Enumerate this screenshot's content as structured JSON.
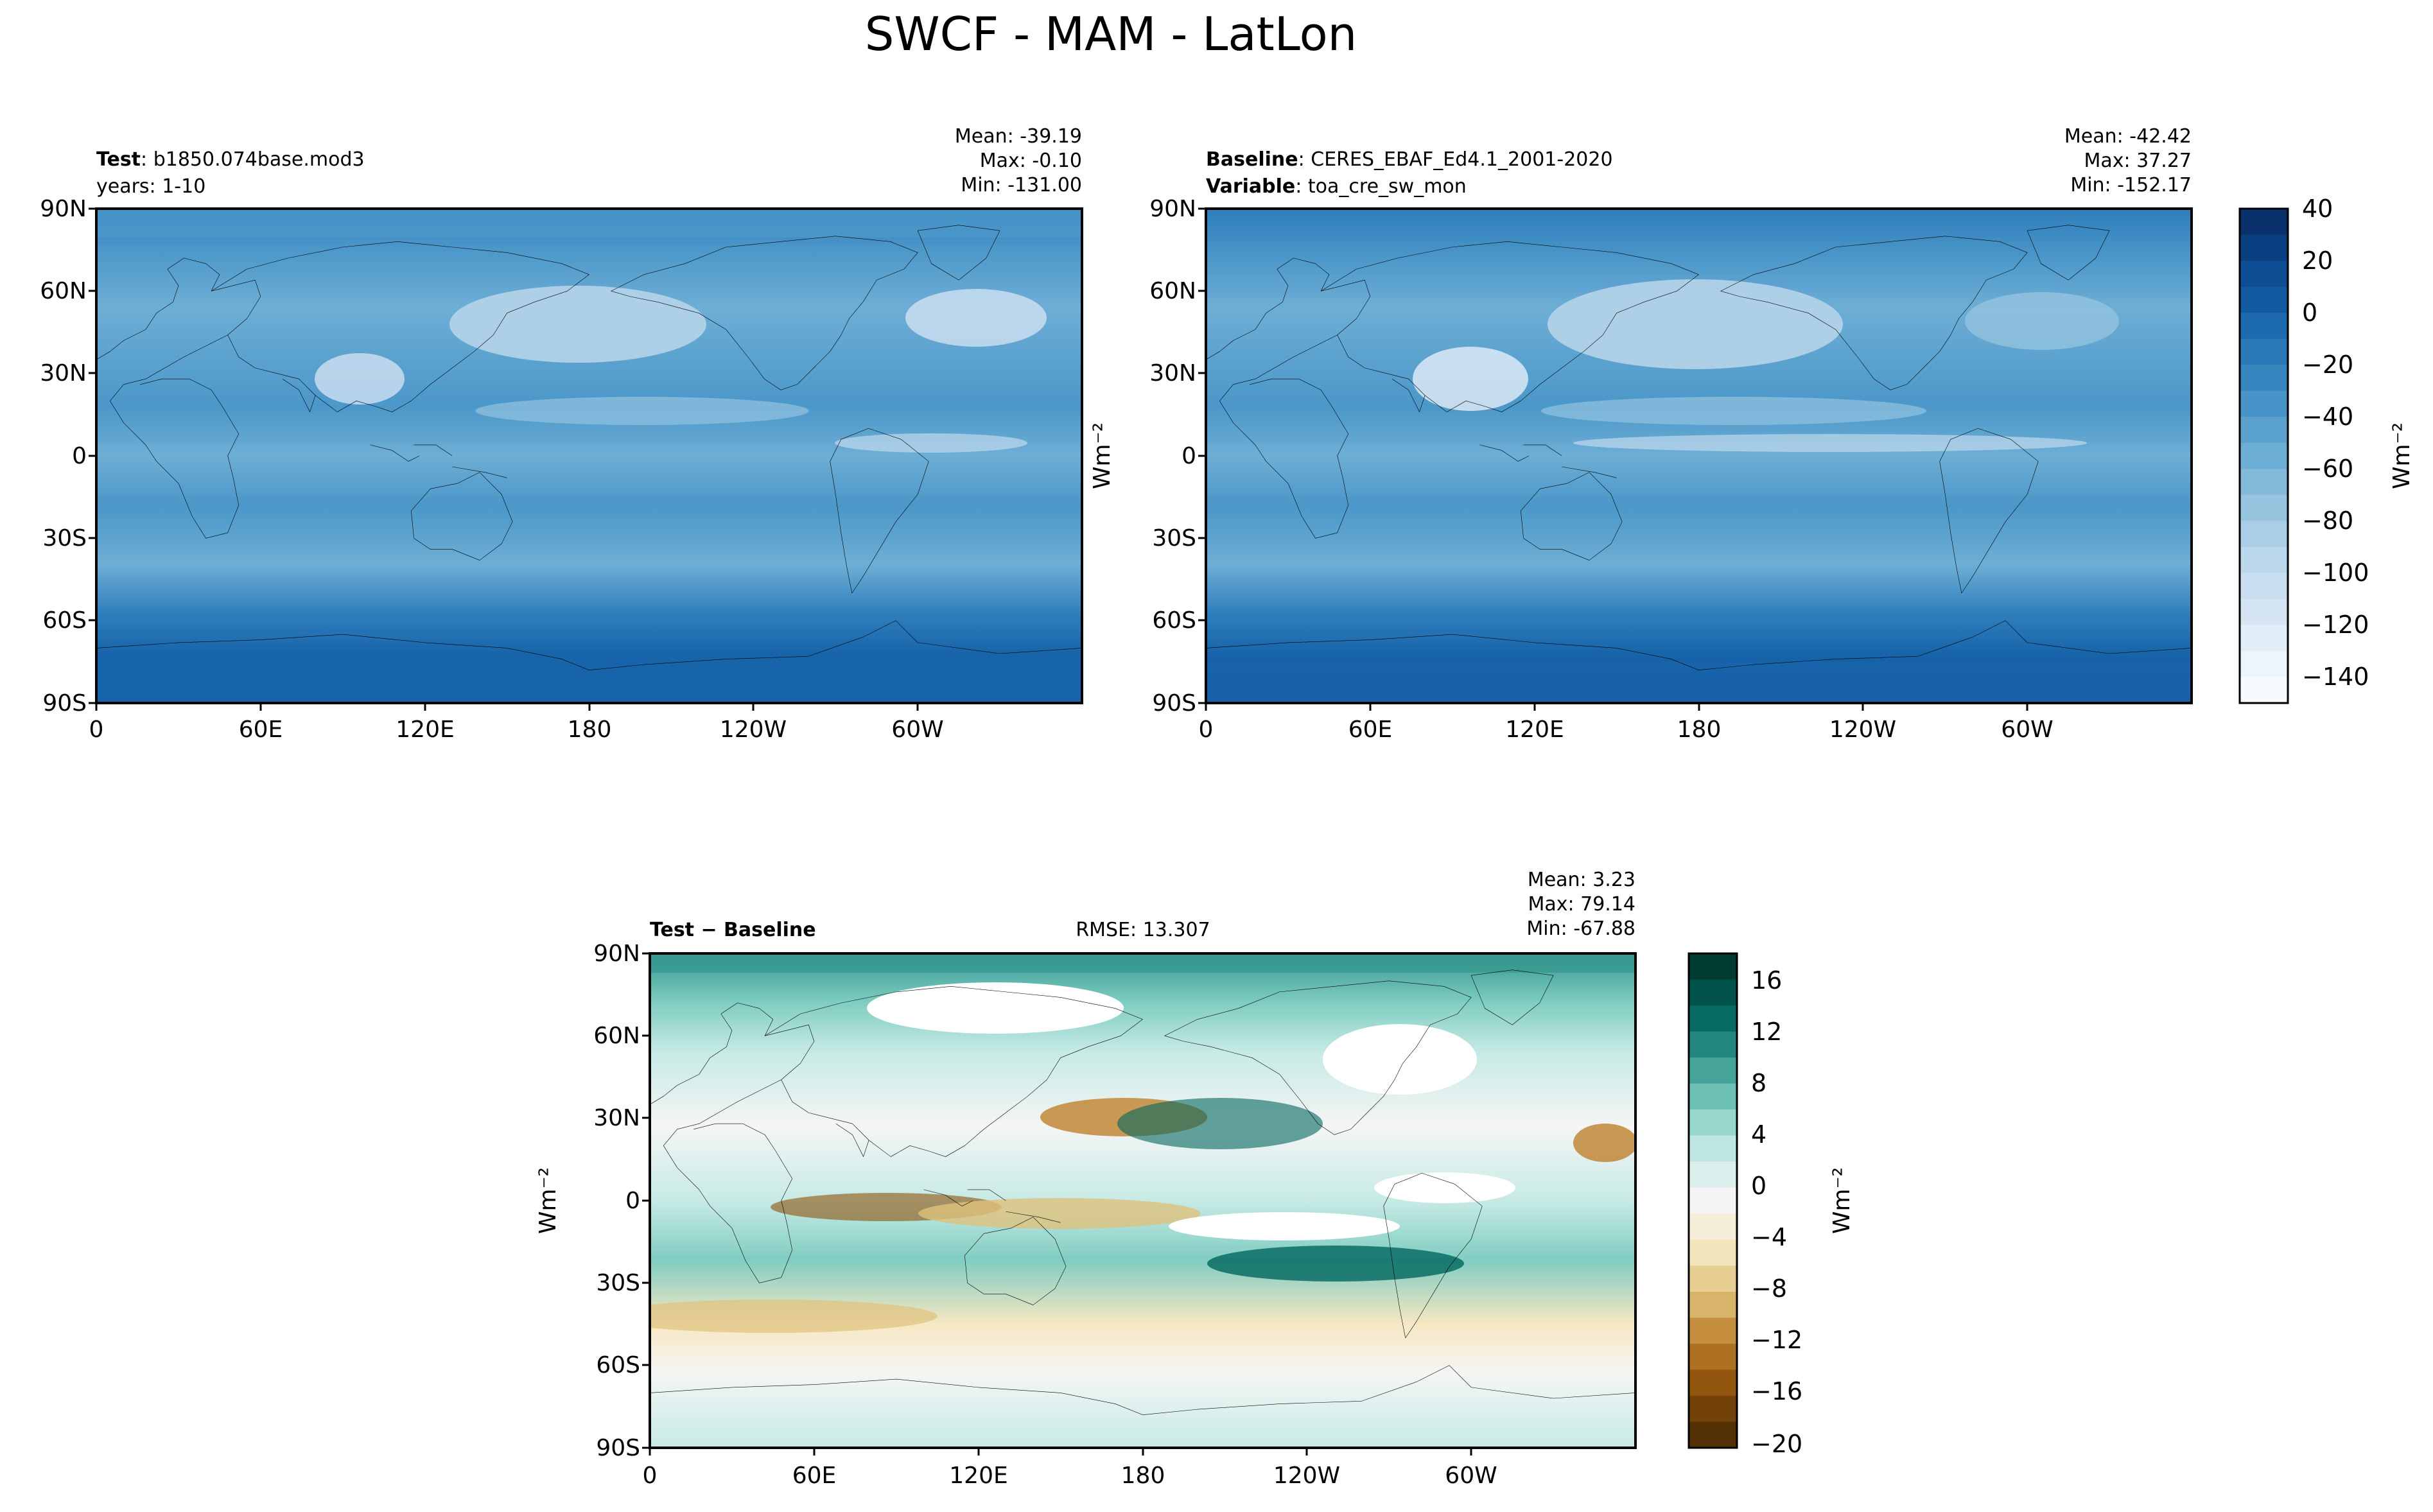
{
  "title": "SWCF - MAM - LatLon",
  "panels": {
    "test": {
      "label_bold": "Test",
      "label_value": "b1850.074base.mod3",
      "line2": "years: 1-10",
      "stats": [
        "Mean: -39.19",
        "Max: -0.10",
        "Min: -131.00"
      ]
    },
    "baseline": {
      "label_bold": "Baseline",
      "label_value": "CERES_EBAF_Ed4.1_2001-2020",
      "line2_bold": "Variable",
      "line2_value": "toa_cre_sw_mon",
      "stats": [
        "Mean: -42.42",
        "Max: 37.27",
        "Min: -152.17"
      ]
    },
    "diff": {
      "label_bold": "Test − Baseline",
      "rmse": "RMSE: 13.307",
      "stats": [
        "Mean:  3.23",
        "Max: 79.14",
        "Min: -67.88"
      ]
    }
  },
  "lat_ticks": [
    "90N",
    "60N",
    "30N",
    "0",
    "30S",
    "60S",
    "90S"
  ],
  "lon_ticks": [
    "0",
    "60E",
    "120E",
    "180",
    "120W",
    "60W"
  ],
  "units": "Wm⁻²",
  "colorbar_main": {
    "ticks": [
      "40",
      "20",
      "0",
      "−20",
      "−40",
      "−60",
      "−80",
      "−100",
      "−120",
      "−140"
    ],
    "label": "Wm⁻²"
  },
  "colorbar_diff": {
    "ticks": [
      "16",
      "12",
      "8",
      "4",
      "0",
      "−4",
      "−8",
      "−12",
      "−16",
      "−20"
    ],
    "label": "Wm⁻²"
  },
  "colors": {
    "blues": [
      "#f7fbff",
      "#e3eef9",
      "#cfe1f2",
      "#b5d4e9",
      "#93c3df",
      "#6daed5",
      "#4b97c9",
      "#2f7ebc",
      "#1864aa",
      "#0a4a90",
      "#08306b"
    ],
    "brbg": [
      "#543005",
      "#8c510a",
      "#bf812d",
      "#dfc27d",
      "#f6e8c3",
      "#f5f5f5",
      "#c7eae5",
      "#80cdc1",
      "#35978f",
      "#01665e",
      "#003c30"
    ],
    "land_outline": "#000000"
  }
}
